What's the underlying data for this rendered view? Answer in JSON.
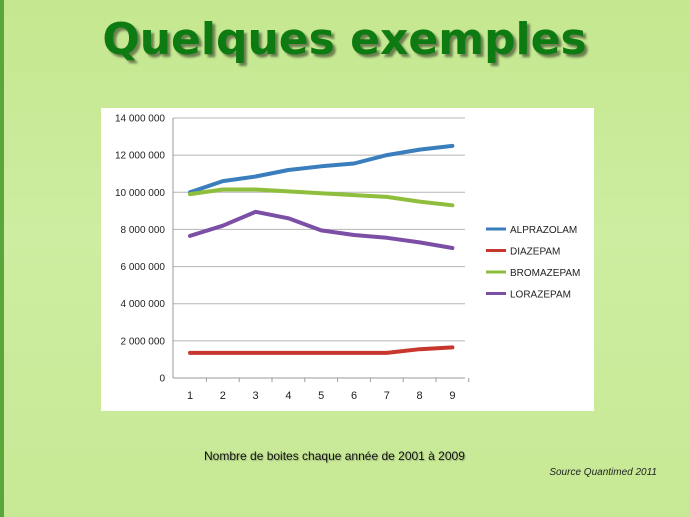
{
  "slide": {
    "title": "Quelques exemples",
    "caption": "Nombre de boites chaque année de 2001 à 2009",
    "source": "Source Quantimed 2011"
  },
  "colors": {
    "background": "#c9ea98",
    "title": "#0e7a12"
  },
  "chart_data": {
    "type": "line",
    "x": [
      1,
      2,
      3,
      4,
      5,
      6,
      7,
      8,
      9
    ],
    "ylim": [
      0,
      14000000
    ],
    "yticks": [
      0,
      2000000,
      4000000,
      6000000,
      8000000,
      10000000,
      12000000,
      14000000
    ],
    "ytick_labels": [
      "0",
      "2 000 000",
      "4 000 000",
      "6 000 000",
      "8 000 000",
      "10 000 000",
      "12 000 000",
      "14 000 000"
    ],
    "grid": "horizontal",
    "legend_position": "right",
    "series": [
      {
        "name": "ALPRAZOLAM",
        "color": "#3a7ebd",
        "values": [
          10000000,
          10600000,
          10850000,
          11200000,
          11400000,
          11550000,
          12000000,
          12300000,
          12500000
        ]
      },
      {
        "name": "DIAZEPAM",
        "color": "#c8372d",
        "values": [
          1350000,
          1350000,
          1350000,
          1350000,
          1350000,
          1350000,
          1350000,
          1550000,
          1650000
        ]
      },
      {
        "name": "BROMAZEPAM",
        "color": "#8fbd3c",
        "values": [
          9900000,
          10150000,
          10150000,
          10050000,
          9950000,
          9850000,
          9750000,
          9500000,
          9300000
        ]
      },
      {
        "name": "LORAZEPAM",
        "color": "#7b4fa6",
        "values": [
          7650000,
          8200000,
          8950000,
          8600000,
          7950000,
          7700000,
          7550000,
          7300000,
          7000000
        ]
      }
    ]
  }
}
